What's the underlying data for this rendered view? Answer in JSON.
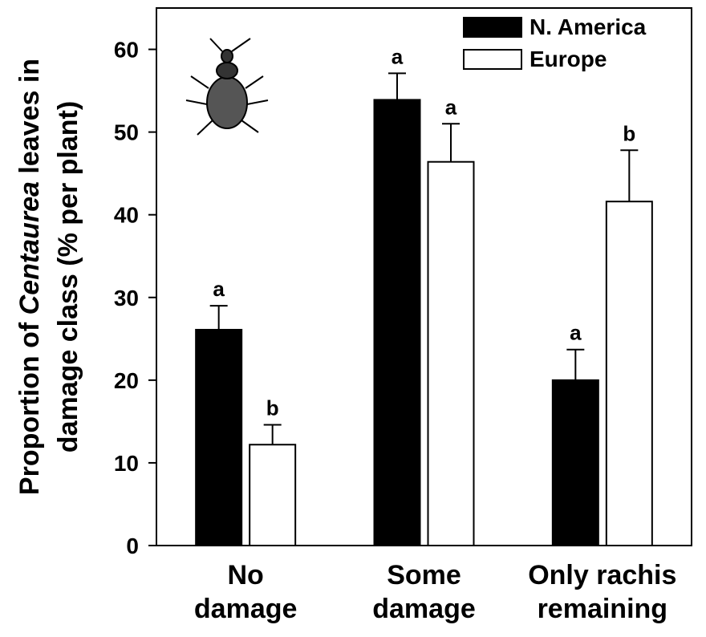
{
  "chart_data": {
    "type": "bar",
    "ylabel_lines": [
      [
        "Proportion of ",
        "Centaurea",
        " leaves in"
      ],
      [
        "damage class (% per plant)"
      ]
    ],
    "categories": [
      [
        "No",
        "damage"
      ],
      [
        "Some",
        "damage"
      ],
      [
        "Only rachis",
        "remaining"
      ]
    ],
    "series": [
      {
        "name": "N. America",
        "color": "#000000",
        "values": [
          26.1,
          53.9,
          20.0
        ],
        "errors": [
          2.9,
          3.2,
          3.7
        ],
        "letters": [
          "a",
          "a",
          "a"
        ]
      },
      {
        "name": "Europe",
        "color": "#ffffff",
        "values": [
          12.2,
          46.4,
          41.6
        ],
        "errors": [
          2.4,
          4.6,
          6.2
        ],
        "letters": [
          "b",
          "a",
          "b"
        ]
      }
    ],
    "ylim": [
      0,
      65
    ],
    "yticks": [
      0,
      10,
      20,
      30,
      40,
      50,
      60
    ],
    "legend": "upper right"
  }
}
